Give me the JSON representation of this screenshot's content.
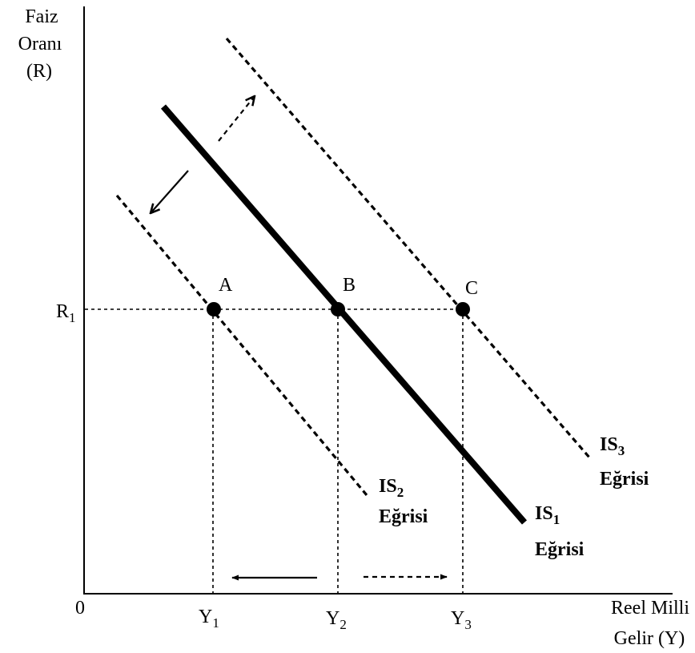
{
  "axes": {
    "y_title_line1": "Faiz",
    "y_title_line2": "Oranı",
    "y_title_line3": "(R)",
    "x_title_line1": "Reel Milli",
    "x_title_line2": "Gelir (Y)",
    "origin": "0"
  },
  "ticks": {
    "r1": {
      "main": "R",
      "sub": "1"
    },
    "y1": {
      "main": "Y",
      "sub": "1"
    },
    "y2": {
      "main": "Y",
      "sub": "2"
    },
    "y3": {
      "main": "Y",
      "sub": "3"
    }
  },
  "points": {
    "a": "A",
    "b": "B",
    "c": "C"
  },
  "curves": {
    "is1": {
      "main": "IS",
      "sub": "1",
      "word": "Eğrisi"
    },
    "is2": {
      "main": "IS",
      "sub": "2",
      "word": "Eğrisi"
    },
    "is3": {
      "main": "IS",
      "sub": "3",
      "word": "Eğrisi"
    }
  }
}
